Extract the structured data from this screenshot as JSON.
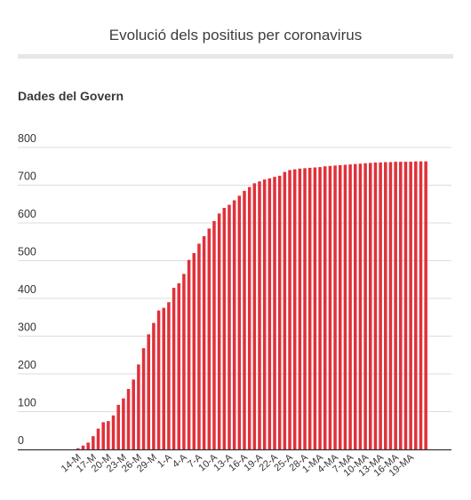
{
  "page": {
    "title": "Evolució dels positius per coronavirus",
    "subtitle": "Dades del Govern"
  },
  "chart_data": {
    "type": "bar",
    "title": "Evolució dels positius per coronavirus",
    "subtitle": "Dades del Govern",
    "xlabel": "",
    "ylabel": "",
    "ylim": [
      0,
      800
    ],
    "yticks": [
      0,
      100,
      200,
      300,
      400,
      500,
      600,
      700,
      800
    ],
    "grid": true,
    "legend": false,
    "bar_color": "#e0313a",
    "tick_labels": [
      "14-M",
      "17-M",
      "20-M",
      "23-M",
      "26-M",
      "29-M",
      "1-A",
      "4-A",
      "7-A",
      "10-A",
      "13-A",
      "16-A",
      "19-A",
      "22-A",
      "25-A",
      "28-A",
      "1-MA",
      "4-MA",
      "7-MA",
      "10-MA",
      "13-MA",
      "16-MA",
      "19-MA"
    ],
    "tick_every": 3,
    "categories": [
      "14-M",
      "15-M",
      "16-M",
      "17-M",
      "18-M",
      "19-M",
      "20-M",
      "21-M",
      "22-M",
      "23-M",
      "24-M",
      "25-M",
      "26-M",
      "27-M",
      "28-M",
      "29-M",
      "30-M",
      "31-M",
      "1-A",
      "2-A",
      "3-A",
      "4-A",
      "5-A",
      "6-A",
      "7-A",
      "8-A",
      "9-A",
      "10-A",
      "11-A",
      "12-A",
      "13-A",
      "14-A",
      "15-A",
      "16-A",
      "17-A",
      "18-A",
      "19-A",
      "20-A",
      "21-A",
      "22-A",
      "23-A",
      "24-A",
      "25-A",
      "26-A",
      "27-A",
      "28-A",
      "29-A",
      "30-A",
      "1-MA",
      "2-MA",
      "3-MA",
      "4-MA",
      "5-MA",
      "6-MA",
      "7-MA",
      "8-MA",
      "9-MA",
      "10-MA",
      "11-MA",
      "12-MA",
      "13-MA",
      "14-MA",
      "15-MA",
      "16-MA",
      "17-MA",
      "18-MA",
      "19-MA",
      "20-MA",
      "21-MA",
      "22-MA"
    ],
    "values": [
      3,
      10,
      18,
      35,
      55,
      72,
      75,
      90,
      118,
      135,
      160,
      185,
      225,
      268,
      305,
      335,
      368,
      375,
      390,
      428,
      440,
      465,
      502,
      520,
      545,
      565,
      585,
      605,
      625,
      640,
      648,
      660,
      672,
      685,
      695,
      705,
      710,
      715,
      718,
      722,
      725,
      735,
      740,
      742,
      744,
      745,
      746,
      747,
      748,
      750,
      751,
      752,
      753,
      754,
      755,
      756,
      757,
      758,
      759,
      760,
      760,
      761,
      761,
      762,
      762,
      762,
      762,
      763,
      763,
      763
    ]
  }
}
